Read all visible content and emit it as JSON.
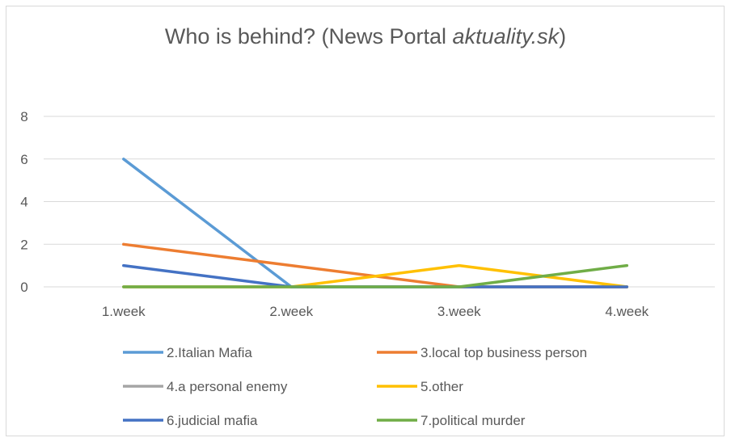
{
  "chart_data": {
    "type": "line",
    "title_main": "Who is behind? (News Portal ",
    "title_italic": "aktuality.sk",
    "title_end": ")",
    "categories": [
      "1.week",
      "2.week",
      "3.week",
      "4.week"
    ],
    "y_ticks": [
      0,
      2,
      4,
      6,
      8
    ],
    "ylim": [
      0,
      8
    ],
    "grid": true,
    "legend_position": "bottom",
    "series": [
      {
        "name": "2.Italian Mafia",
        "color": "#5b9bd5",
        "values": [
          6,
          0,
          0,
          0
        ]
      },
      {
        "name": "3.local top business person",
        "color": "#ed7d31",
        "values": [
          2,
          1,
          0,
          0
        ]
      },
      {
        "name": "4.a personal enemy",
        "color": "#a5a5a5",
        "values": [
          0,
          0,
          0,
          0
        ]
      },
      {
        "name": "5.other",
        "color": "#ffc000",
        "values": [
          0,
          0,
          1,
          0
        ]
      },
      {
        "name": "6.judicial mafia",
        "color": "#4472c4",
        "values": [
          1,
          0,
          0,
          0
        ]
      },
      {
        "name": "7.political murder",
        "color": "#70ad47",
        "values": [
          0,
          0,
          0,
          1
        ]
      }
    ]
  }
}
